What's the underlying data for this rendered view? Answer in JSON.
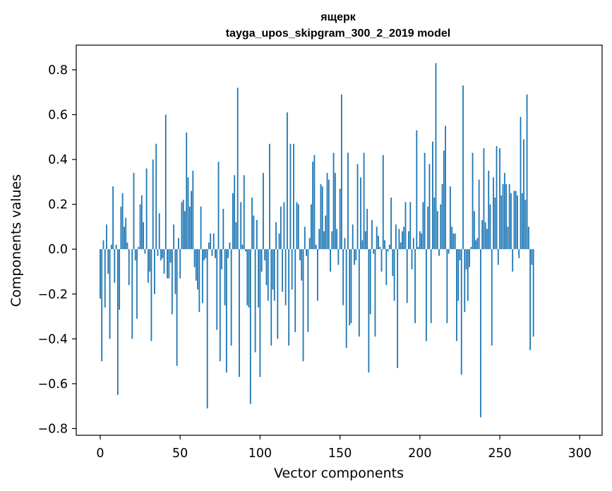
{
  "chart_data": {
    "type": "bar",
    "title": "ящерк",
    "subtitle": "tayga_upos_skipgram_300_2_2019 model",
    "xlabel": "Vector components",
    "ylabel": "Components values",
    "xlim": [
      -15,
      314
    ],
    "ylim": [
      -0.83,
      0.91
    ],
    "xticks": [
      0,
      50,
      100,
      150,
      200,
      250,
      300
    ],
    "yticks": [
      0.8,
      0.6,
      0.4,
      0.2,
      0.0,
      -0.2,
      -0.4,
      -0.6,
      -0.8
    ],
    "ytick_labels": [
      "0.8",
      "0.6",
      "0.4",
      "0.2",
      "0.0",
      "−0.2",
      "−0.4",
      "−0.6",
      "−0.8"
    ],
    "bar_color": "#1f77b4",
    "values": [
      -0.22,
      -0.5,
      0.04,
      -0.26,
      0.11,
      -0.11,
      -0.4,
      0.02,
      0.28,
      -0.15,
      0.02,
      -0.65,
      -0.27,
      0.19,
      0.25,
      0.1,
      0.14,
      0.03,
      -0.16,
      0.0,
      -0.4,
      0.34,
      -0.05,
      -0.31,
      0.01,
      0.2,
      0.24,
      0.12,
      -0.02,
      0.36,
      -0.15,
      -0.1,
      -0.41,
      0.4,
      -0.2,
      0.47,
      -0.03,
      0.16,
      -0.05,
      -0.04,
      -0.11,
      0.6,
      -0.13,
      -0.13,
      -0.06,
      -0.29,
      0.11,
      -0.2,
      -0.52,
      0.05,
      -0.13,
      0.21,
      0.22,
      0.17,
      0.52,
      0.32,
      0.19,
      0.26,
      0.35,
      -0.08,
      -0.14,
      -0.18,
      -0.28,
      0.19,
      -0.24,
      -0.05,
      -0.04,
      -0.71,
      0.03,
      0.07,
      -0.03,
      0.07,
      -0.04,
      -0.36,
      0.39,
      -0.5,
      -0.09,
      0.18,
      -0.25,
      -0.55,
      -0.04,
      0.03,
      -0.43,
      0.25,
      0.33,
      0.12,
      0.72,
      -0.57,
      0.21,
      0.02,
      0.33,
      -0.01,
      -0.25,
      -0.26,
      -0.69,
      0.23,
      0.15,
      -0.46,
      0.13,
      -0.26,
      -0.57,
      -0.1,
      0.34,
      -0.05,
      -0.16,
      -0.23,
      0.47,
      -0.43,
      -0.18,
      -0.23,
      0.12,
      -0.4,
      0.07,
      0.19,
      -0.19,
      0.21,
      -0.25,
      0.61,
      -0.43,
      0.47,
      -0.18,
      0.47,
      -0.37,
      0.21,
      0.2,
      -0.05,
      -0.14,
      -0.5,
      0.1,
      -0.03,
      -0.37,
      0.05,
      0.2,
      0.39,
      0.42,
      0.02,
      -0.23,
      0.09,
      0.29,
      0.28,
      0.08,
      0.15,
      0.34,
      0.31,
      -0.1,
      0.08,
      0.43,
      0.34,
      0.09,
      -0.07,
      0.27,
      0.69,
      -0.25,
      0.05,
      -0.44,
      0.43,
      -0.34,
      -0.33,
      0.11,
      -0.07,
      -0.05,
      0.38,
      -0.39,
      0.32,
      0.04,
      0.43,
      0.08,
      0.18,
      -0.55,
      -0.29,
      0.13,
      -0.02,
      -0.39,
      0.1,
      0.06,
      0.01,
      -0.1,
      0.42,
      0.04,
      -0.16,
      -0.01,
      0.02,
      0.23,
      -0.12,
      -0.23,
      0.11,
      -0.53,
      0.09,
      0.03,
      0.08,
      0.1,
      0.21,
      -0.24,
      0.08,
      0.21,
      -0.09,
      0.05,
      -0.33,
      0.53,
      0.01,
      0.08,
      0.07,
      0.21,
      0.43,
      -0.41,
      0.19,
      0.38,
      -0.33,
      0.48,
      0.23,
      0.83,
      0.17,
      -0.03,
      0.2,
      0.29,
      0.44,
      0.55,
      -0.33,
      -0.02,
      0.28,
      0.1,
      0.07,
      0.07,
      -0.41,
      -0.23,
      -0.05,
      -0.56,
      0.73,
      -0.28,
      -0.09,
      -0.23,
      -0.08,
      0.01,
      0.43,
      0.17,
      0.04,
      0.05,
      0.31,
      -0.75,
      0.13,
      0.45,
      0.12,
      0.09,
      0.35,
      0.2,
      -0.43,
      0.32,
      0.23,
      0.46,
      -0.07,
      0.45,
      0.24,
      0.29,
      0.34,
      0.29,
      0.1,
      0.29,
      0.25,
      -0.1,
      0.26,
      0.26,
      0.24,
      -0.04,
      0.59,
      0.25,
      0.49,
      0.22,
      0.69,
      0.1,
      -0.45,
      -0.07,
      -0.39
    ]
  }
}
